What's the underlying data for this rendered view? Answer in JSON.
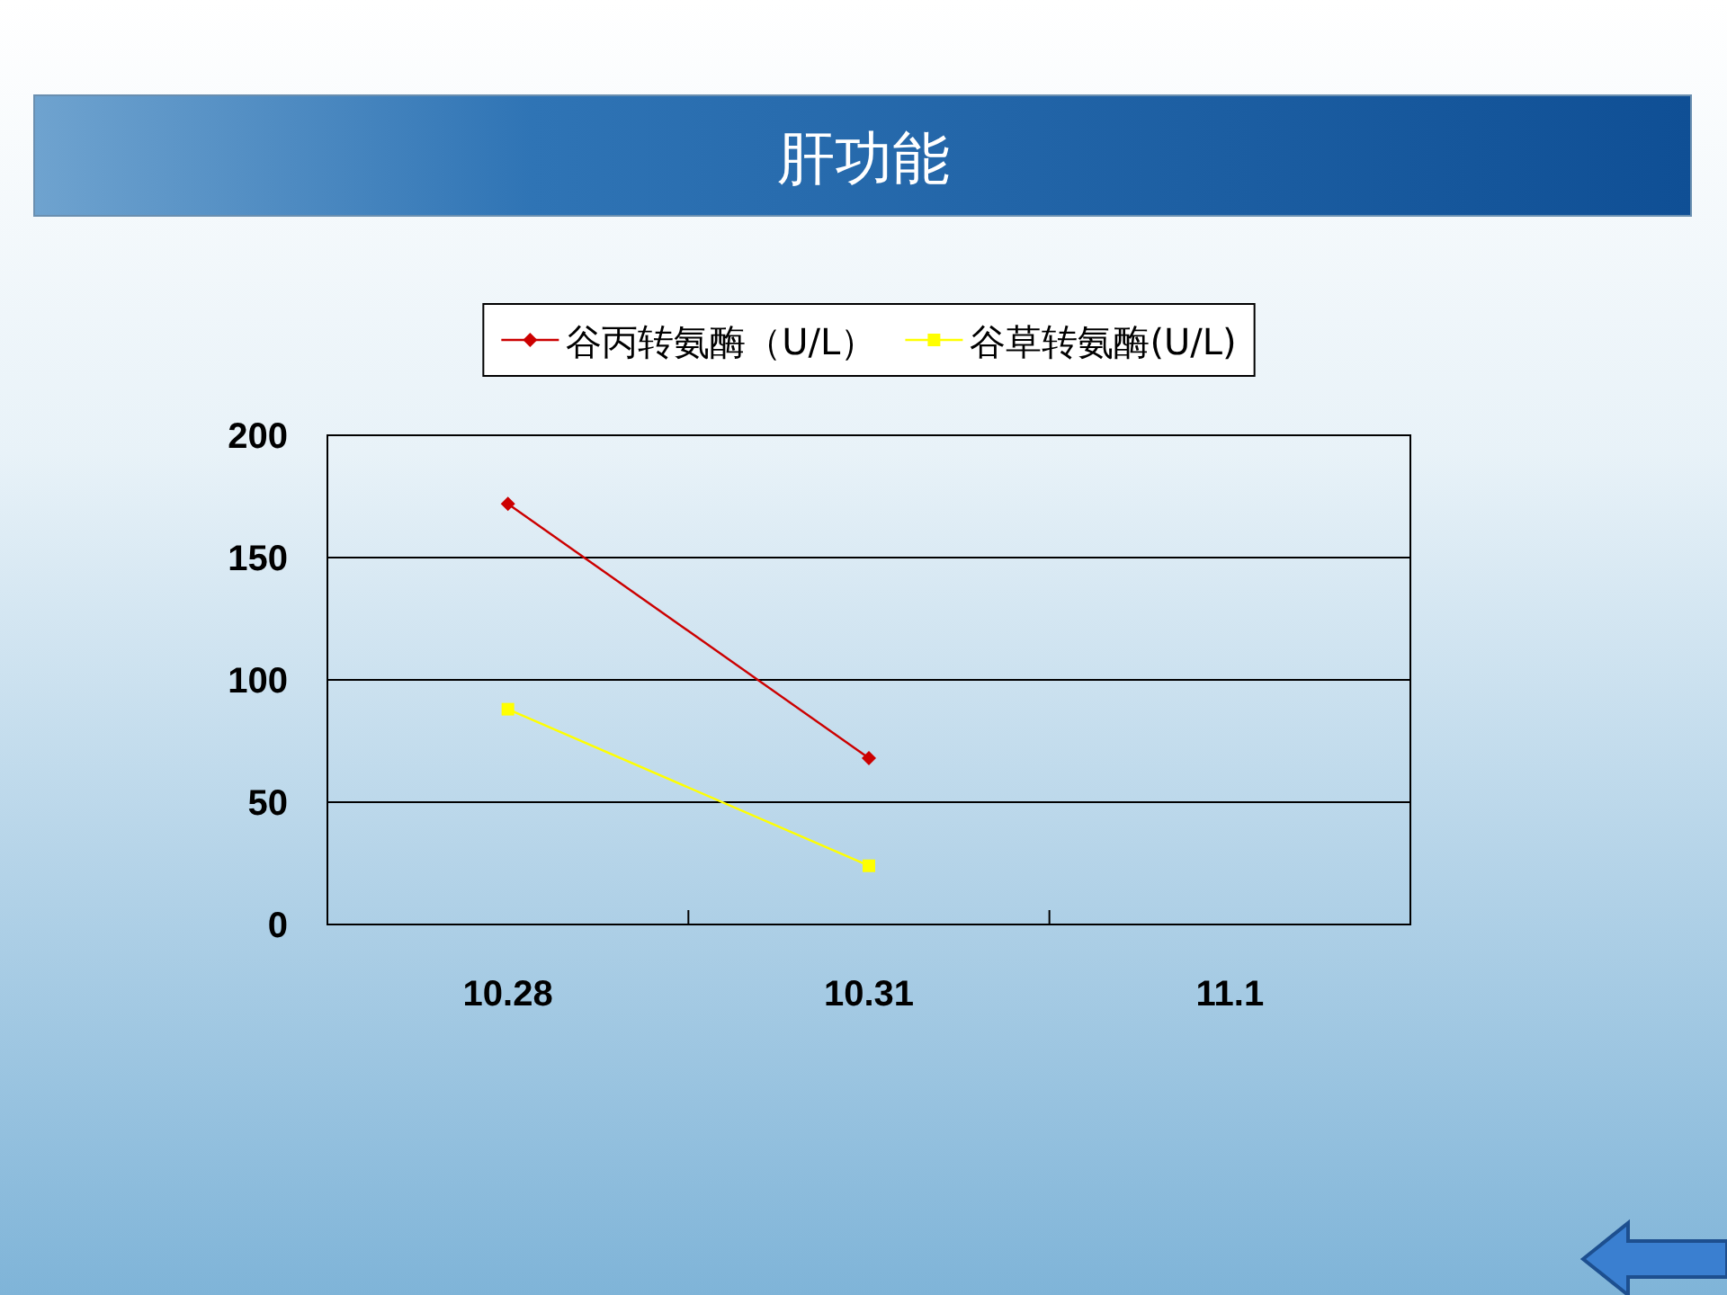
{
  "chart_data": {
    "type": "line",
    "title": "肝功能",
    "categories": [
      "10.28",
      "10.31",
      "11.1"
    ],
    "series": [
      {
        "name": "谷丙转氨酶（U/L）",
        "color": "#cc0000",
        "marker": "diamond",
        "values": [
          172,
          68,
          null
        ]
      },
      {
        "name": "谷草转氨酶(U/L)",
        "color": "#ffff00",
        "marker": "square",
        "values": [
          88,
          24,
          null
        ]
      }
    ],
    "ylim": [
      0,
      200
    ],
    "yticks": [
      0,
      50,
      100,
      150,
      200
    ],
    "grid": "y",
    "legend": "top"
  }
}
